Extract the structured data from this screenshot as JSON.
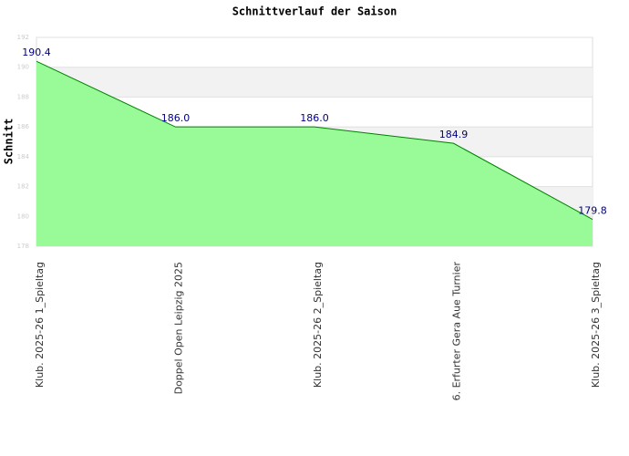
{
  "chart_data": {
    "type": "area",
    "title": "Schnittverlauf der Saison",
    "y_label": "Schnitt",
    "categories": [
      "Klub. 2025-26  1_Spieltag",
      "Doppel Open Leipzig 2025",
      "Klub. 2025-26  2_Spieltag",
      "6. Erfurter Gera Aue Turnier",
      "Klub. 2025-26  3_Spieltag"
    ],
    "values": [
      190.4,
      186.0,
      186.0,
      184.9,
      179.8
    ],
    "value_labels": [
      "190.4",
      "186.0",
      "186.0",
      "184.9",
      "179.8"
    ],
    "color": "#98fb98",
    "line_color": "#008000",
    "ylim": [
      178,
      192
    ],
    "yticks": [
      178,
      180,
      182,
      184,
      186,
      188,
      190,
      192
    ],
    "grid": true
  }
}
